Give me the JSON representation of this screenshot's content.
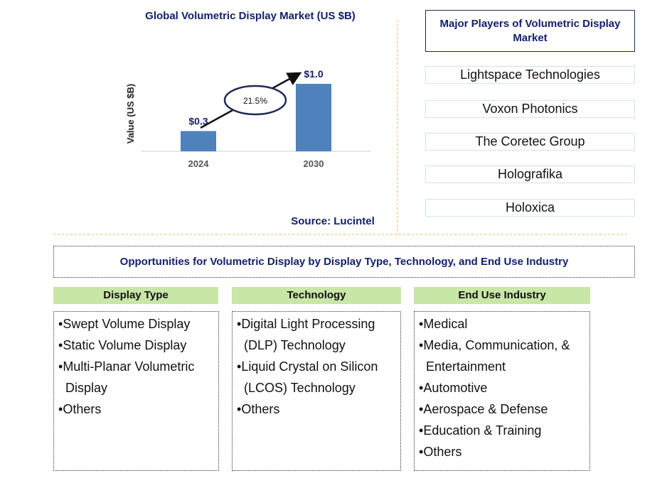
{
  "chart_data": {
    "type": "bar",
    "title": "Global Volumetric Display Market (US $B)",
    "y_label": "Value (US $B)",
    "categories": [
      "2024",
      "2030"
    ],
    "values": [
      0.3,
      1.0
    ],
    "value_labels": [
      "$0.3",
      "$1.0"
    ],
    "color": "#4f81bd",
    "ylim": [
      0,
      1.2
    ],
    "annotation": "21.5%",
    "source": "Source: Lucintel"
  },
  "players": {
    "title": "Major Players of Volumetric Display Market",
    "items": [
      "Lightspace Technologies",
      "Voxon Photonics",
      "The Coretec Group",
      "Holografika",
      "Holoxica"
    ]
  },
  "opportunities": {
    "title": "Opportunities for Volumetric Display by Display Type, Technology, and End Use Industry",
    "columns": [
      {
        "header": "Display Type",
        "items": [
          "Swept Volume Display",
          "Static Volume Display",
          "Multi-Planar Volumetric Display",
          "Others"
        ]
      },
      {
        "header": "Technology",
        "items": [
          "Digital Light Processing (DLP) Technology",
          "Liquid Crystal on Silicon (LCOS) Technology",
          "Others"
        ]
      },
      {
        "header": "End Use Industry",
        "items": [
          "Medical",
          "Media, Communication, & Entertainment",
          "Automotive",
          "Aerospace & Defense",
          "Education & Training",
          "Others"
        ]
      }
    ]
  }
}
